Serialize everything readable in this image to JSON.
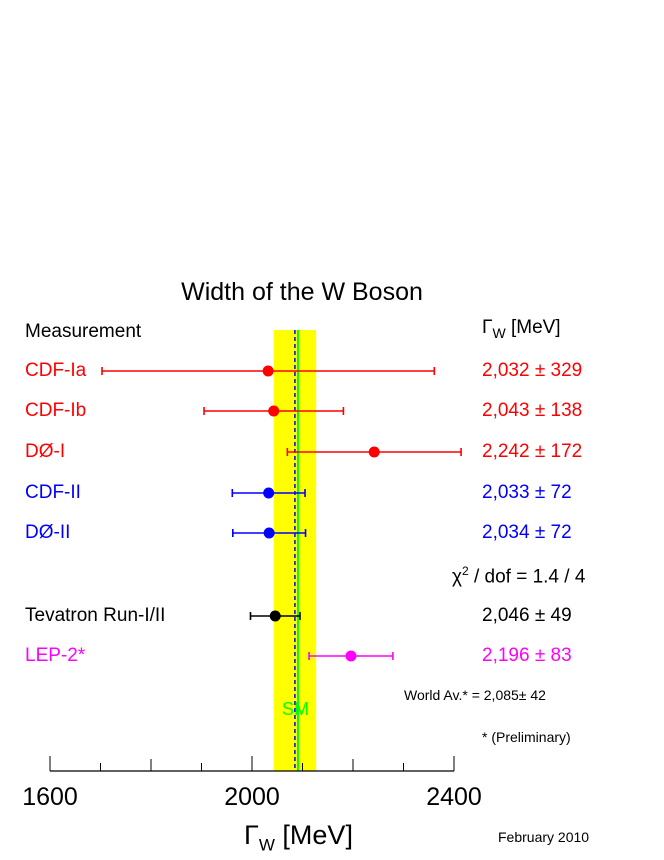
{
  "chart_data": {
    "type": "scatter",
    "title": "Width of the W Boson",
    "column_header_left": "Measurement",
    "column_header_right": {
      "symbol": "Γ",
      "sub": "W",
      "unit": " [MeV]"
    },
    "xlabel": {
      "symbol": "Γ",
      "sub": "W",
      "unit": " [MeV]"
    },
    "xlim": [
      1600,
      2400
    ],
    "xticks": [
      "1600",
      "2000",
      "2400"
    ],
    "measurements": [
      {
        "name": "CDF-Ia",
        "value": 2032,
        "error": 329,
        "label": "2,032 ± 329",
        "color": "#ff0000"
      },
      {
        "name": "CDF-Ib",
        "value": 2043,
        "error": 138,
        "label": "2,043 ± 138",
        "color": "#ff0000"
      },
      {
        "name": "DØ-I",
        "value": 2242,
        "error": 172,
        "label": "2,242 ± 172",
        "color": "#ff0000"
      },
      {
        "name": "CDF-II",
        "value": 2033,
        "error": 72,
        "label": "2,033 ± 72",
        "color": "#0000ff"
      },
      {
        "name": "DØ-II",
        "value": 2034,
        "error": 72,
        "label": "2,034 ± 72",
        "color": "#0000ff"
      },
      {
        "name": "Tevatron Run-I/II",
        "value": 2046,
        "error": 49,
        "label": "2,046 ± 49",
        "color": "#000000"
      },
      {
        "name": "LEP-2*",
        "value": 2196,
        "error": 83,
        "label": "2,196 ± 83",
        "color": "#ff00ff"
      }
    ],
    "chi2": {
      "prefix": "χ",
      "sup": "2",
      "text": " / dof = 1.4 / 4"
    },
    "world_average": {
      "text": "World Av.* = 2,085± 42",
      "value": 2085,
      "error": 42,
      "band_color": "#ffff00",
      "line_color": "#0000ff"
    },
    "standard_model": {
      "label": "SM",
      "value": 2091,
      "color": "#00ff00"
    },
    "footnote": "* (Preliminary)",
    "date": "February  2010"
  }
}
